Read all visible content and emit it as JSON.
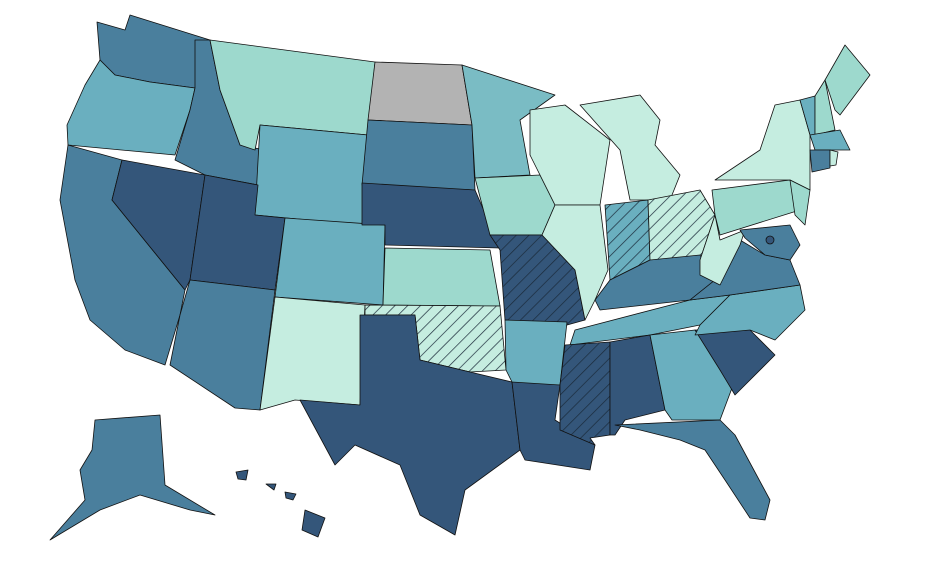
{
  "regions": [
    {
      "color": "#4a7f9d",
      "hatch": false
    },
    {
      "color": "#6aafbf",
      "hatch": false
    },
    {
      "color": "#4a7f9d",
      "hatch": false
    },
    {
      "color": "#34567a",
      "hatch": false
    },
    {
      "color": "#4a7f9d",
      "hatch": false
    },
    {
      "color": "#9dd9cd",
      "hatch": false
    },
    {
      "color": "#6aafbf",
      "hatch": false
    },
    {
      "color": "#34567a",
      "hatch": false
    },
    {
      "color": "#4a7f9d",
      "hatch": false
    },
    {
      "color": "#6aafbf",
      "hatch": false
    },
    {
      "color": "#c5ede0",
      "hatch": false
    },
    {
      "color": "#b3b3b3",
      "hatch": false
    },
    {
      "color": "#4a7f9d",
      "hatch": false
    },
    {
      "color": "#34567a",
      "hatch": false
    },
    {
      "color": "#9dd9cd",
      "hatch": false
    },
    {
      "color": "#c5ede0",
      "hatch": true
    },
    {
      "color": "#34567a",
      "hatch": false
    },
    {
      "color": "#7abcc4",
      "hatch": false
    },
    {
      "color": "#9dd9cd",
      "hatch": false
    },
    {
      "color": "#34567a",
      "hatch": true
    },
    {
      "color": "#6aafbf",
      "hatch": false
    },
    {
      "color": "#34567a",
      "hatch": false
    },
    {
      "color": "#c5ede0",
      "hatch": false
    },
    {
      "color": "#c5ede0",
      "hatch": false
    },
    {
      "color": "#c5ede0",
      "hatch": false
    },
    {
      "color": "#6aafbf",
      "hatch": true
    },
    {
      "color": "#c5ede0",
      "hatch": true
    },
    {
      "color": "#4a7f9d",
      "hatch": false
    },
    {
      "color": "#6aafbf",
      "hatch": false
    },
    {
      "color": "#34567a",
      "hatch": true
    },
    {
      "color": "#34567a",
      "hatch": false
    },
    {
      "color": "#6aafbf",
      "hatch": false
    },
    {
      "color": "#4a7f9d",
      "hatch": false
    },
    {
      "color": "#34567a",
      "hatch": false
    },
    {
      "color": "#6aafbf",
      "hatch": false
    },
    {
      "color": "#4a7f9d",
      "hatch": false
    },
    {
      "color": "#c5ede0",
      "hatch": false
    },
    {
      "color": "#9dd9cd",
      "hatch": false
    },
    {
      "color": "#c5ede0",
      "hatch": false
    },
    {
      "color": "#9dd9cd",
      "hatch": false
    },
    {
      "color": "#4a7f9d",
      "hatch": false
    },
    {
      "color": "#6aafbf",
      "hatch": false
    },
    {
      "color": "#9dd9cd",
      "hatch": false
    },
    {
      "color": "#9dd9cd",
      "hatch": false
    },
    {
      "color": "#6aafbf",
      "hatch": false
    },
    {
      "color": "#4a7f9d",
      "hatch": false
    },
    {
      "color": "#c5ede0",
      "hatch": false
    },
    {
      "color": "#4a7f9d",
      "hatch": false
    },
    {
      "color": "#34567a",
      "hatch": false
    },
    {
      "color": "#34567a",
      "hatch": false
    }
  ]
}
